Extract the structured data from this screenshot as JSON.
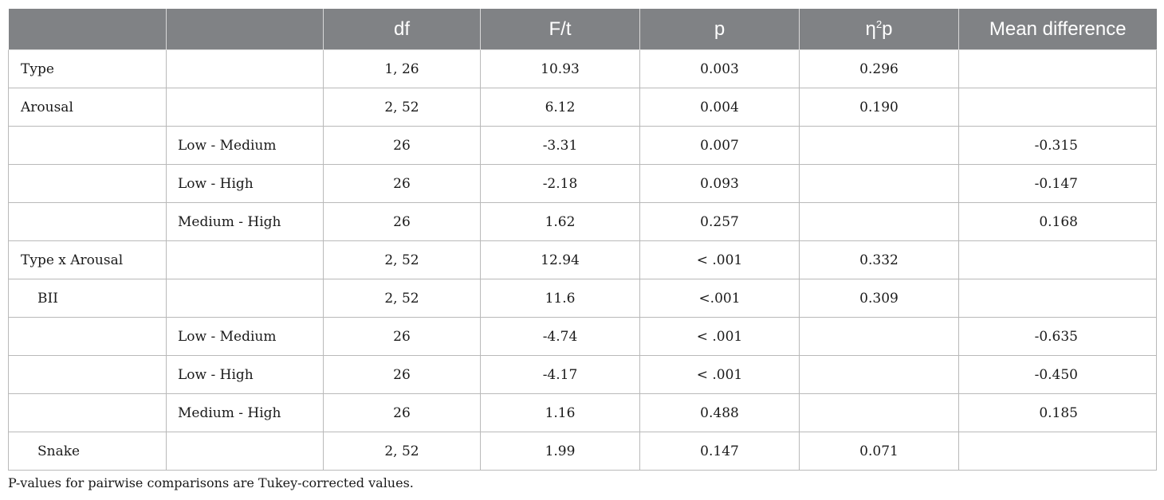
{
  "table": {
    "headers": {
      "effect": "",
      "comparison": "",
      "df": "df",
      "ft": "F/t",
      "p": "p",
      "eta_base": "η",
      "eta_sup": "2",
      "eta_sub": "p",
      "mean_diff": "Mean difference"
    },
    "rows": [
      {
        "effect": "Type",
        "comparison": "",
        "df": "1, 26",
        "ft": "10.93",
        "p": "0.003",
        "eta": "0.296",
        "mean_diff": ""
      },
      {
        "effect": "Arousal",
        "comparison": "",
        "df": "2, 52",
        "ft": "6.12",
        "p": "0.004",
        "eta": "0.190",
        "mean_diff": ""
      },
      {
        "effect": "",
        "comparison": "Low - Medium",
        "df": "26",
        "ft": "-3.31",
        "p": "0.007",
        "eta": "",
        "mean_diff": "-0.315"
      },
      {
        "effect": "",
        "comparison": "Low - High",
        "df": "26",
        "ft": "-2.18",
        "p": "0.093",
        "eta": "",
        "mean_diff": "-0.147"
      },
      {
        "effect": "",
        "comparison": "Medium - High",
        "df": "26",
        "ft": "1.62",
        "p": "0.257",
        "eta": "",
        "mean_diff": "0.168"
      },
      {
        "effect": "Type x Arousal",
        "comparison": "",
        "df": "2, 52",
        "ft": "12.94",
        "p": "< .001",
        "eta": "0.332",
        "mean_diff": ""
      },
      {
        "effect": "BII",
        "comparison": "",
        "df": "2, 52",
        "ft": "11.6",
        "p": "<.001",
        "eta": "0.309",
        "mean_diff": ""
      },
      {
        "effect": "",
        "comparison": "Low - Medium",
        "df": "26",
        "ft": "-4.74",
        "p": "< .001",
        "eta": "",
        "mean_diff": "-0.635"
      },
      {
        "effect": "",
        "comparison": "Low - High",
        "df": "26",
        "ft": "-4.17",
        "p": "< .001",
        "eta": "",
        "mean_diff": "-0.450"
      },
      {
        "effect": "",
        "comparison": "Medium - High",
        "df": "26",
        "ft": "1.16",
        "p": "0.488",
        "eta": "",
        "mean_diff": "0.185"
      },
      {
        "effect": "Snake",
        "comparison": "",
        "df": "2, 52",
        "ft": "1.99",
        "p": "0.147",
        "eta": "0.071",
        "mean_diff": ""
      }
    ]
  },
  "note": "P-values for pairwise comparisons are Tukey-corrected values.",
  "colors": {
    "header_bg": "#808285",
    "header_text": "#ffffff",
    "border": "#b9b9b9"
  }
}
